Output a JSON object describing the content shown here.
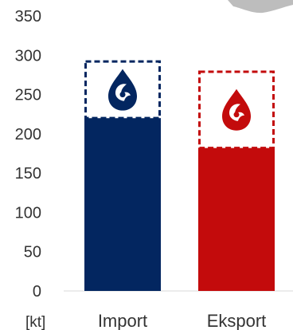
{
  "chart_data": {
    "type": "bar",
    "categories": [
      "Import",
      "Eksport"
    ],
    "values": [
      220,
      182
    ],
    "dashed_box_top": [
      292,
      279
    ],
    "colors": [
      "#032660",
      "#c30b0c"
    ],
    "ylim": [
      0,
      350
    ],
    "yticks": [
      "0",
      "50",
      "100",
      "150",
      "200",
      "250",
      "300",
      "350"
    ],
    "unit_label": "[kt]",
    "grid": false,
    "icons": [
      "drop-logo-icon",
      "drop-logo-icon"
    ]
  }
}
